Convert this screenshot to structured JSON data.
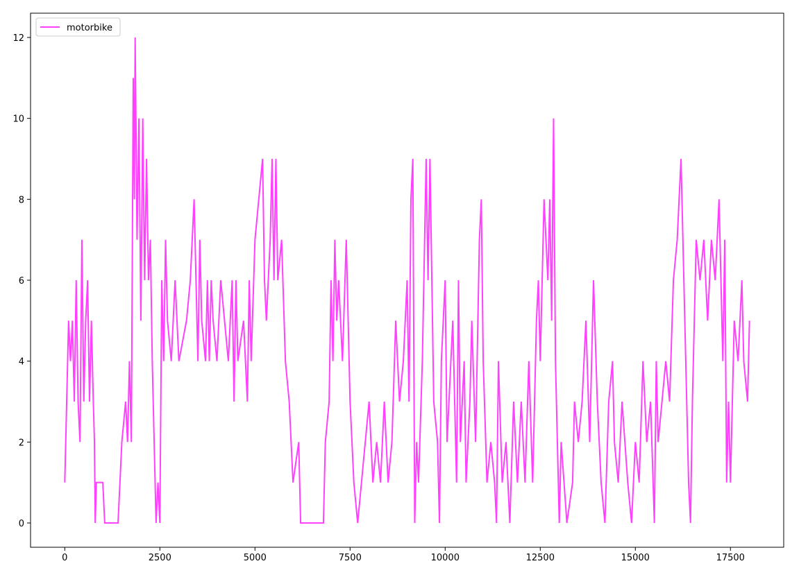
{
  "chart_data": {
    "type": "line",
    "x": [
      0,
      50,
      100,
      150,
      200,
      250,
      300,
      350,
      400,
      450,
      500,
      550,
      600,
      650,
      700,
      750,
      780,
      800,
      830,
      1000,
      1050,
      1400,
      1450,
      1500,
      1600,
      1650,
      1700,
      1750,
      1800,
      1830,
      1850,
      1900,
      1950,
      2000,
      2050,
      2100,
      2150,
      2200,
      2250,
      2300,
      2400,
      2450,
      2500,
      2550,
      2600,
      2650,
      2700,
      2800,
      2900,
      3000,
      3200,
      3300,
      3400,
      3450,
      3500,
      3550,
      3600,
      3700,
      3750,
      3800,
      3850,
      3900,
      4000,
      4100,
      4200,
      4300,
      4400,
      4450,
      4500,
      4550,
      4700,
      4800,
      4850,
      4900,
      5000,
      5100,
      5200,
      5250,
      5300,
      5400,
      5450,
      5500,
      5550,
      5600,
      5700,
      5800,
      5900,
      5950,
      6000,
      6150,
      6200,
      6800,
      6850,
      6950,
      7000,
      7050,
      7100,
      7150,
      7200,
      7300,
      7400,
      7500,
      7550,
      7600,
      7700,
      7800,
      7900,
      8000,
      8100,
      8200,
      8300,
      8400,
      8500,
      8600,
      8700,
      8800,
      8900,
      9000,
      9050,
      9100,
      9150,
      9200,
      9250,
      9300,
      9400,
      9500,
      9550,
      9600,
      9650,
      9700,
      9800,
      9850,
      9900,
      10000,
      10050,
      10100,
      10200,
      10300,
      10350,
      10400,
      10500,
      10550,
      10650,
      10700,
      10800,
      10900,
      10950,
      11000,
      11100,
      11200,
      11300,
      11350,
      11400,
      11500,
      11600,
      11700,
      11800,
      11900,
      12000,
      12100,
      12200,
      12300,
      12400,
      12450,
      12500,
      12600,
      12700,
      12750,
      12800,
      12850,
      12900,
      13000,
      13050,
      13200,
      13350,
      13400,
      13500,
      13600,
      13700,
      13800,
      13900,
      14000,
      14100,
      14200,
      14300,
      14400,
      14450,
      14550,
      14650,
      14800,
      14900,
      15000,
      15100,
      15200,
      15300,
      15400,
      15500,
      15550,
      15600,
      15700,
      15800,
      15900,
      16000,
      16100,
      16200,
      16300,
      16400,
      16450,
      16500,
      16600,
      16700,
      16800,
      16900,
      17000,
      17100,
      17200,
      17300,
      17350,
      17400,
      17450,
      17500,
      17600,
      17700,
      17800,
      17850,
      17950,
      18000
    ],
    "series": [
      {
        "name": "motorbike",
        "color": "#ff40ff",
        "values": [
          1,
          3,
          5,
          4,
          5,
          3,
          6,
          3,
          2,
          7,
          3,
          5,
          6,
          3,
          5,
          3,
          2,
          0,
          1,
          1,
          0,
          0,
          1,
          2,
          3,
          2,
          4,
          2,
          11,
          8,
          12,
          7,
          10,
          5,
          10,
          6,
          9,
          6,
          7,
          4,
          0,
          1,
          0,
          6,
          4,
          7,
          5,
          4,
          6,
          4,
          5,
          6,
          8,
          6,
          4,
          7,
          5,
          4,
          6,
          4,
          6,
          5,
          4,
          6,
          5,
          4,
          6,
          3,
          6,
          4,
          5,
          3,
          6,
          4,
          7,
          8,
          9,
          6,
          5,
          7,
          9,
          6,
          9,
          6,
          7,
          4,
          3,
          2,
          1,
          2,
          0,
          0,
          2,
          3,
          6,
          4,
          7,
          5,
          6,
          4,
          7,
          3,
          2,
          1,
          0,
          1,
          2,
          3,
          1,
          2,
          1,
          3,
          1,
          2,
          5,
          3,
          4,
          6,
          3,
          8,
          9,
          0,
          2,
          1,
          4,
          9,
          6,
          9,
          6,
          3,
          2,
          0,
          4,
          6,
          2,
          3,
          5,
          1,
          6,
          2,
          4,
          1,
          3,
          5,
          2,
          7,
          8,
          4,
          1,
          2,
          1,
          0,
          4,
          1,
          2,
          0,
          3,
          1,
          3,
          1,
          4,
          1,
          5,
          6,
          4,
          8,
          6,
          8,
          5,
          10,
          4,
          0,
          2,
          0,
          1,
          3,
          2,
          3,
          5,
          2,
          6,
          3,
          1,
          0,
          3,
          4,
          2,
          1,
          3,
          1,
          0,
          2,
          1,
          4,
          2,
          3,
          0,
          4,
          2,
          3,
          4,
          3,
          6,
          7,
          9,
          5,
          1,
          0,
          3,
          7,
          6,
          7,
          5,
          7,
          6,
          8,
          4,
          7,
          1,
          3,
          1,
          5,
          4,
          6,
          4,
          3,
          5
        ]
      }
    ],
    "xlim": [
      -900,
      18900
    ],
    "ylim": [
      -0.6,
      12.6
    ],
    "xticks": [
      0,
      2500,
      5000,
      7500,
      10000,
      12500,
      15000,
      17500
    ],
    "yticks": [
      0,
      2,
      4,
      6,
      8,
      10,
      12
    ],
    "legend": "upper left"
  }
}
